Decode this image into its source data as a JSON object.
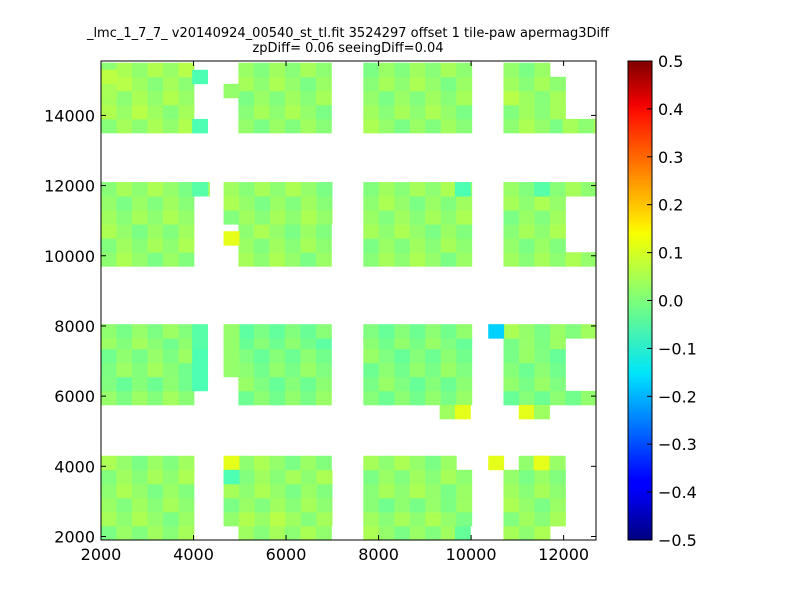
{
  "chart_data": {
    "type": "heatmap",
    "title": "_lmc_1_7_7_ v20140924_00540_st_tl.fit 3524297 offset 1 tile-paw apermag3Diff",
    "subtitle": "zpDiff= 0.06 seeingDiff=0.04",
    "xlabel": "",
    "ylabel": "",
    "xlim": [
      2000,
      12700
    ],
    "ylim": [
      1900,
      15550
    ],
    "x_ticks": [
      2000,
      4000,
      6000,
      8000,
      10000,
      12000
    ],
    "y_ticks": [
      2000,
      4000,
      6000,
      8000,
      10000,
      12000,
      14000
    ],
    "x_tick_labels": [
      "2000",
      "4000",
      "6000",
      "8000",
      "10000",
      "12000"
    ],
    "y_tick_labels": [
      "2000",
      "4000",
      "6000",
      "8000",
      "10000",
      "12000",
      "14000"
    ],
    "colorbar": {
      "colormap": "jet",
      "range": [
        -0.5,
        0.5
      ],
      "ticks": [
        -0.5,
        -0.4,
        -0.3,
        -0.2,
        -0.1,
        0.0,
        0.1,
        0.2,
        0.3,
        0.4,
        0.5
      ],
      "tick_labels": [
        "−0.5",
        "−0.4",
        "−0.3",
        "−0.2",
        "−0.1",
        "0.0",
        "0.1",
        "0.2",
        "0.3",
        "0.4",
        "0.5"
      ]
    },
    "grid": false,
    "cell_size": [
      335,
      400
    ],
    "rows": [
      [
        1900,
        [
          [
            2000,
            3970,
            0.02
          ],
          [
            4970,
            6970,
            0.03
          ],
          [
            7670,
            9640,
            0.02
          ],
          [
            9650,
            9980,
            -0.02
          ],
          [
            10700,
            11640,
            0.02
          ]
        ]
      ],
      [
        2300,
        [
          [
            2000,
            3970,
            0.02
          ],
          [
            4650,
            6970,
            0.03
          ],
          [
            7670,
            9980,
            0.02
          ],
          [
            10700,
            12000,
            0.02
          ]
        ]
      ],
      [
        2700,
        [
          [
            2000,
            3970,
            0.02
          ],
          [
            4650,
            6970,
            0.02
          ],
          [
            7670,
            9980,
            0.01
          ],
          [
            10700,
            12000,
            0.02
          ]
        ]
      ],
      [
        3100,
        [
          [
            2000,
            3970,
            0.02
          ],
          [
            4650,
            6970,
            0.02
          ],
          [
            7670,
            9980,
            0.02
          ],
          [
            10700,
            12000,
            0.02
          ]
        ]
      ],
      [
        3500,
        [
          [
            2000,
            3970,
            0.02
          ],
          [
            4650,
            6970,
            0.02
          ],
          [
            7670,
            9980,
            0.02
          ],
          [
            10700,
            12000,
            0.02
          ]
        ]
      ],
      [
        3900,
        [
          [
            2000,
            3970,
            0.02
          ],
          [
            4970,
            6970,
            0.02
          ],
          [
            7670,
            9640,
            0.02
          ],
          [
            11030,
            12000,
            0.03
          ]
        ]
      ],
      [
        5750,
        [
          [
            2000,
            3970,
            0.01
          ],
          [
            4970,
            6970,
            0.0
          ],
          [
            7670,
            9980,
            0.0
          ],
          [
            10700,
            12670,
            0.0
          ]
        ]
      ],
      [
        6150,
        [
          [
            2000,
            3970,
            0.0
          ],
          [
            4970,
            6970,
            0.0
          ],
          [
            7670,
            9980,
            0.0
          ],
          [
            10700,
            12000,
            0.0
          ]
        ]
      ],
      [
        6550,
        [
          [
            2000,
            3970,
            0.01
          ],
          [
            4970,
            6970,
            0.0
          ],
          [
            7670,
            9980,
            0.0
          ],
          [
            10700,
            12000,
            0.0
          ]
        ]
      ],
      [
        6950,
        [
          [
            2000,
            3970,
            0.01
          ],
          [
            4970,
            6970,
            0.0
          ],
          [
            7670,
            9980,
            0.0
          ],
          [
            10700,
            12000,
            0.0
          ]
        ]
      ],
      [
        7350,
        [
          [
            2000,
            3970,
            0.01
          ],
          [
            4970,
            6970,
            -0.01
          ],
          [
            7670,
            9980,
            0.0
          ],
          [
            10700,
            12000,
            0.01
          ]
        ]
      ],
      [
        7650,
        [
          [
            2000,
            3970,
            0.01
          ],
          [
            4970,
            6970,
            -0.01
          ],
          [
            7670,
            9980,
            0.0
          ],
          [
            10700,
            12670,
            0.02
          ]
        ]
      ],
      [
        9700,
        [
          [
            2000,
            3970,
            0.02
          ],
          [
            4970,
            6970,
            0.02
          ],
          [
            7670,
            9980,
            0.02
          ],
          [
            10700,
            12670,
            0.02
          ]
        ]
      ],
      [
        10100,
        [
          [
            2000,
            3970,
            0.02
          ],
          [
            4970,
            6970,
            0.02
          ],
          [
            7670,
            9980,
            0.02
          ],
          [
            10700,
            12000,
            0.02
          ]
        ]
      ],
      [
        10500,
        [
          [
            2000,
            3970,
            0.02
          ],
          [
            4970,
            6970,
            0.02
          ],
          [
            7670,
            9980,
            0.02
          ],
          [
            10700,
            12000,
            0.02
          ]
        ]
      ],
      [
        10900,
        [
          [
            2000,
            3970,
            0.02
          ],
          [
            4650,
            6970,
            0.02
          ],
          [
            7670,
            9980,
            0.02
          ],
          [
            10700,
            12000,
            0.02
          ]
        ]
      ],
      [
        11300,
        [
          [
            2000,
            3970,
            0.02
          ],
          [
            4650,
            6970,
            0.02
          ],
          [
            7670,
            9980,
            0.02
          ],
          [
            10700,
            12000,
            0.02
          ]
        ]
      ],
      [
        11700,
        [
          [
            2000,
            4310,
            0.02
          ],
          [
            4650,
            6970,
            0.02
          ],
          [
            7670,
            9980,
            0.02
          ],
          [
            10700,
            12670,
            0.02
          ]
        ]
      ],
      [
        13500,
        [
          [
            2000,
            3970,
            0.03
          ],
          [
            4970,
            6970,
            0.02
          ],
          [
            7670,
            9980,
            0.02
          ],
          [
            10700,
            11970,
            0.02
          ],
          [
            11980,
            12670,
            0.02
          ]
        ]
      ],
      [
        13900,
        [
          [
            2000,
            3970,
            0.03
          ],
          [
            4970,
            6970,
            0.02
          ],
          [
            7670,
            9980,
            0.02
          ],
          [
            10700,
            12000,
            0.02
          ]
        ]
      ],
      [
        14300,
        [
          [
            2000,
            3970,
            0.03
          ],
          [
            4970,
            6970,
            0.02
          ],
          [
            7670,
            9980,
            0.02
          ],
          [
            10700,
            12000,
            0.03
          ]
        ]
      ],
      [
        14700,
        [
          [
            2000,
            3970,
            0.03
          ],
          [
            4970,
            6970,
            0.02
          ],
          [
            7670,
            9980,
            0.02
          ],
          [
            10700,
            12000,
            0.02
          ]
        ]
      ],
      [
        15100,
        [
          [
            2000,
            3970,
            0.03
          ],
          [
            4970,
            6970,
            0.02
          ],
          [
            7670,
            9980,
            0.02
          ],
          [
            10700,
            11640,
            0.02
          ]
        ]
      ]
    ],
    "special_cells": [
      [
        4650,
        3900,
        0.1
      ],
      [
        4650,
        3500,
        -0.05
      ],
      [
        10370,
        3900,
        0.1
      ],
      [
        11350,
        3900,
        0.1
      ],
      [
        9320,
        5350,
        0.03
      ],
      [
        9650,
        5350,
        0.1
      ],
      [
        11030,
        5350,
        0.1
      ],
      [
        11360,
        5350,
        0.03
      ],
      [
        3970,
        6150,
        -0.05
      ],
      [
        3970,
        6550,
        -0.05
      ],
      [
        3970,
        6950,
        -0.05
      ],
      [
        3970,
        7350,
        -0.04
      ],
      [
        3970,
        7650,
        -0.04
      ],
      [
        4650,
        6550,
        0.02
      ],
      [
        4650,
        6950,
        0.02
      ],
      [
        4650,
        7350,
        0.02
      ],
      [
        4650,
        7650,
        0.02
      ],
      [
        10370,
        7650,
        -0.17
      ],
      [
        4650,
        10300,
        0.1
      ],
      [
        3970,
        11700,
        -0.04
      ],
      [
        3970,
        13500,
        -0.05
      ],
      [
        3970,
        14900,
        -0.05
      ],
      [
        4650,
        14500,
        0.02
      ],
      [
        2000,
        14900,
        0.06
      ],
      [
        2000,
        14500,
        0.04
      ],
      [
        9650,
        11700,
        -0.05
      ],
      [
        11360,
        11700,
        -0.04
      ]
    ]
  }
}
